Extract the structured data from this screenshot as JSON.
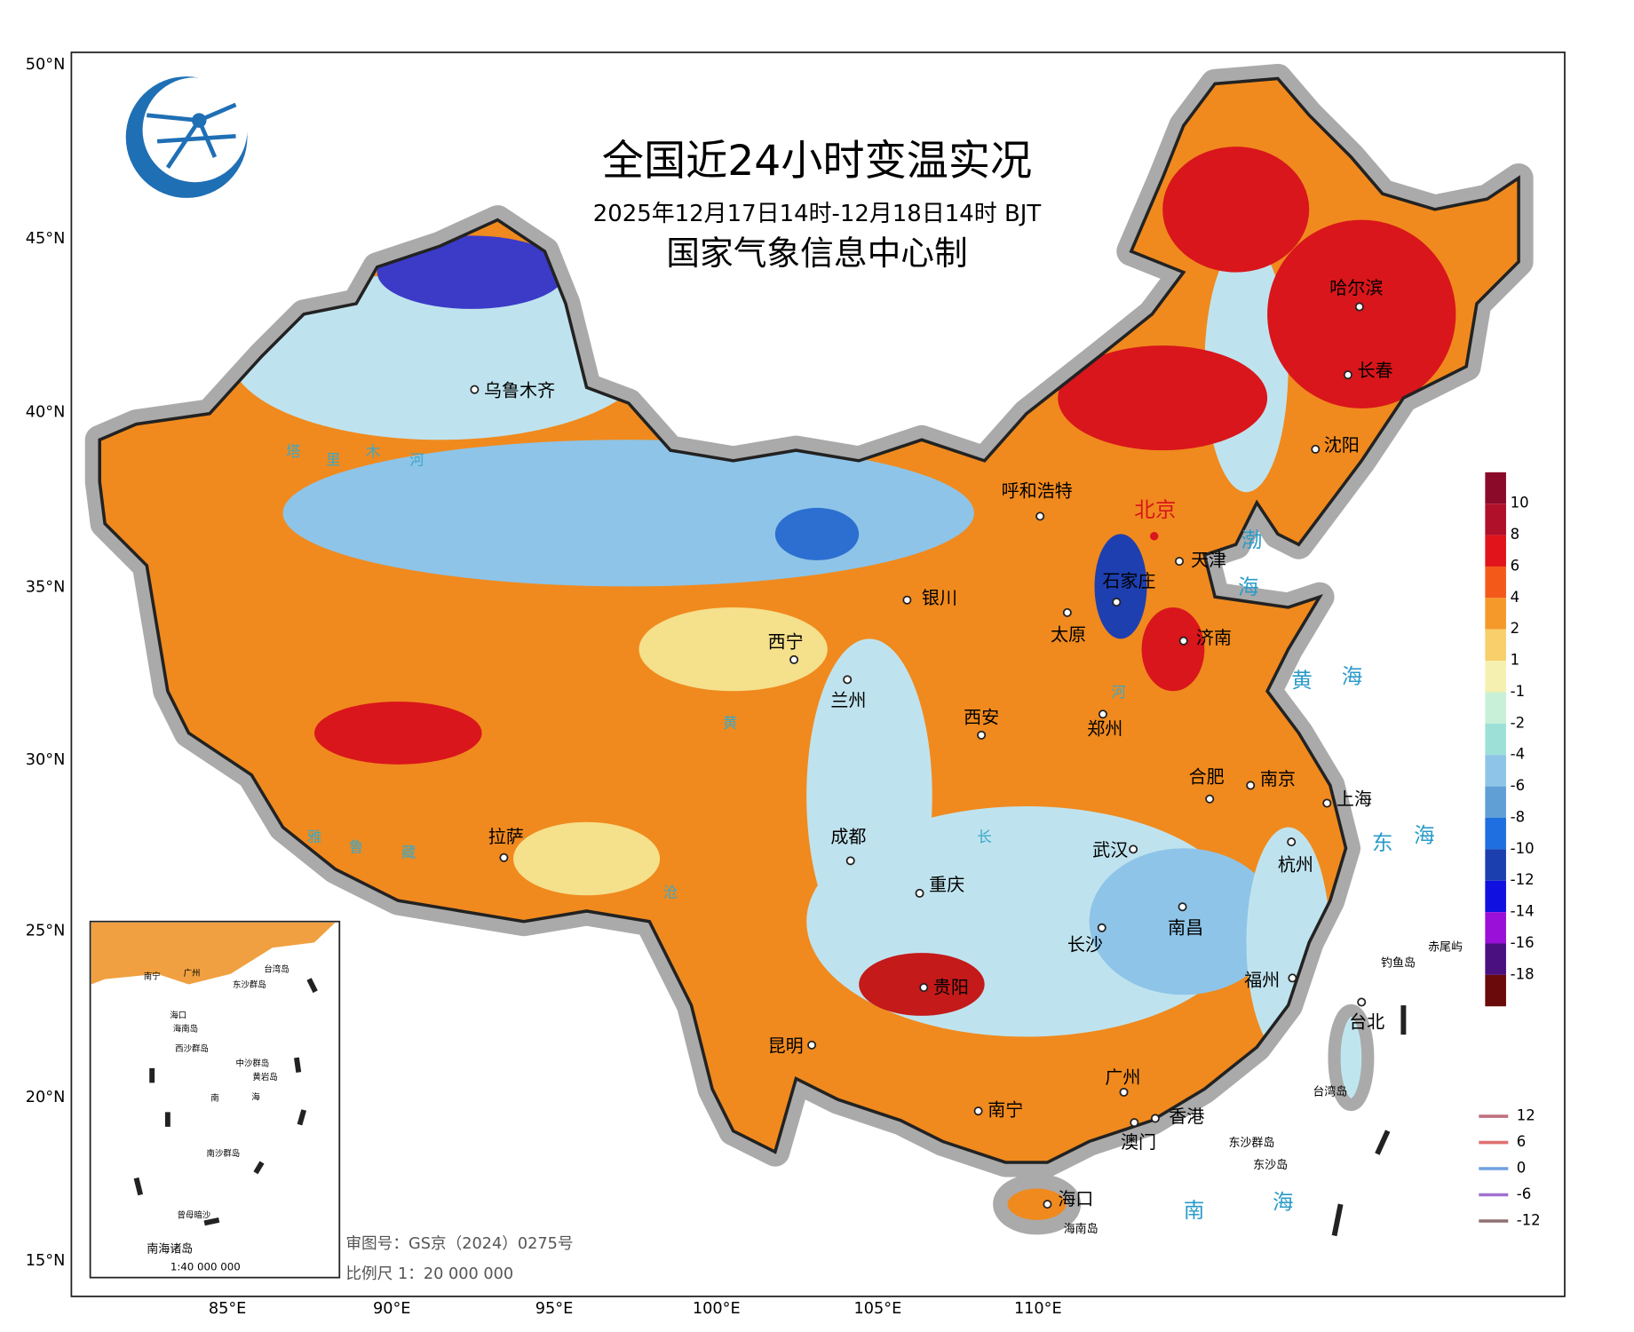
{
  "header": {
    "title": "全国近24小时变温实况",
    "subtitle": "2025年12月17日14时-12月18日14时 BJT",
    "producer": "国家气象信息中心制"
  },
  "axes": {
    "lat": [
      "50°N",
      "45°N",
      "40°N",
      "35°N",
      "30°N",
      "25°N",
      "20°N",
      "15°N"
    ],
    "lon": [
      "85°E",
      "90°E",
      "95°E",
      "100°E",
      "105°E",
      "110°E"
    ]
  },
  "capital": "北京",
  "cities": [
    "乌鲁木齐",
    "呼和浩特",
    "天津",
    "石家庄",
    "太原",
    "济南",
    "银川",
    "西宁",
    "兰州",
    "西安",
    "郑州",
    "合肥",
    "南京",
    "上海",
    "拉萨",
    "成都",
    "重庆",
    "武汉",
    "杭州",
    "长沙",
    "南昌",
    "贵阳",
    "福州",
    "台北",
    "昆明",
    "南宁",
    "广州",
    "香港",
    "澳门",
    "海口",
    "哈尔滨",
    "长春",
    "沈阳"
  ],
  "islands": [
    "钓鱼岛",
    "赤尾屿",
    "台湾岛",
    "东沙群岛",
    "东沙岛",
    "海南岛"
  ],
  "seas": [
    "渤",
    "海",
    "黄",
    "海",
    "东",
    "海",
    "南",
    "海"
  ],
  "rivers": [
    "塔",
    "里",
    "木",
    "河",
    "黄",
    "河",
    "长",
    "雅",
    "鲁",
    "藏",
    "沧"
  ],
  "colorbar": [
    10,
    8,
    6,
    4,
    2,
    1,
    -1,
    -2,
    -4,
    -6,
    -8,
    -10,
    -12,
    -14,
    -16,
    -18
  ],
  "contour_legend": [
    12,
    6,
    0,
    -6,
    -12
  ],
  "inset": {
    "labels": [
      "南宁",
      "广州",
      "台湾岛",
      "东沙群岛",
      "海口",
      "海南岛",
      "西沙群岛",
      "中沙群岛",
      "黄岩岛",
      "南",
      "海",
      "南沙群岛",
      "曾母暗沙"
    ],
    "title": "南海诸岛",
    "scale": "1:40 000 000"
  },
  "footer": {
    "review": "审图号：GS京（2024）0275号",
    "scale": "比例尺 1：20 000 000"
  }
}
